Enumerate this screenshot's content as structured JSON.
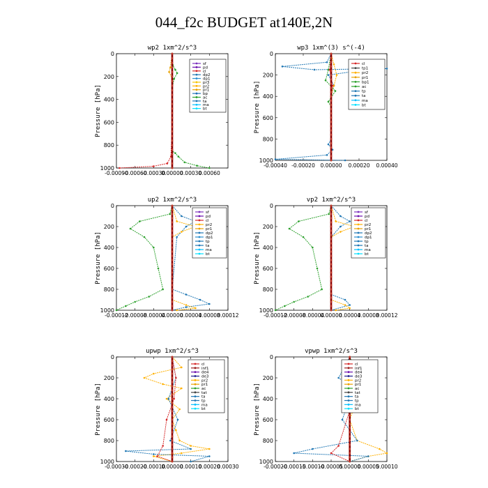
{
  "title": "044_f2c  BUDGET at140E,2N",
  "colors": {
    "sf": "#7b2fbe",
    "pd": "#6a0dad",
    "cl": "#d62728",
    "inf1": "#9b1c1c",
    "dp2": "#1f77b4",
    "dp1": "#2a8fd0",
    "pr3": "#f5c400",
    "pr2": "#ffb000",
    "pr1": "#e8a000",
    "bp": "#1f6fb4",
    "bp1": "#2ca02c",
    "ac": "#2ca02c",
    "tp": "#1f77b4",
    "ta": "#1f77b4",
    "ma": "#00bfff",
    "bt": "#00e0ff",
    "de4": "#6a0dad",
    "de3": "#1a1a8c",
    "ma_bar": "#8b0000"
  },
  "chart_data": [
    {
      "type": "line",
      "title": "wp2   1xm^2/s^3",
      "ylabel": "Pressure [hPa]",
      "ylim": [
        1000,
        0
      ],
      "yticks": [
        "0",
        "200",
        "400",
        "600",
        "800",
        "1000"
      ],
      "xlim": [
        -0.0009,
        0.0009
      ],
      "xticks": [
        "-0.00090",
        "-0.00060",
        "-0.00030",
        "0.00000",
        "0.00030",
        "0.00060"
      ],
      "legend": [
        "sf",
        "pd",
        "cl",
        "dp2",
        "dp1",
        "pr3",
        "pr2",
        "pr1",
        "bp",
        "ac",
        "ta",
        "ma",
        "bt"
      ],
      "series": [
        {
          "key": "bp1",
          "points": [
            [
              0,
              0
            ],
            [
              1e-05,
              100
            ],
            [
              5e-05,
              140
            ],
            [
              8e-05,
              170
            ],
            [
              3e-05,
              220
            ],
            [
              0,
              300
            ],
            [
              0,
              600
            ],
            [
              0,
              850
            ],
            [
              5e-05,
              870
            ],
            [
              0.0001,
              900
            ],
            [
              0.0002,
              950
            ],
            [
              0.0004,
              980
            ],
            [
              0.0006,
              1000
            ]
          ]
        },
        {
          "key": "cl",
          "points": [
            [
              0,
              0
            ],
            [
              0,
              600
            ],
            [
              -2e-05,
              900
            ],
            [
              -8e-05,
              960
            ],
            [
              -0.0003,
              985
            ],
            [
              -0.00085,
              1000
            ]
          ]
        },
        {
          "key": "pr1",
          "points": [
            [
              0,
              0
            ],
            [
              -3e-05,
              120
            ],
            [
              -5e-05,
              160
            ],
            [
              0,
              220
            ],
            [
              0,
              1000
            ]
          ]
        },
        {
          "key": "ma_bar",
          "points": [
            [
              0,
              0
            ],
            [
              0,
              1000
            ]
          ]
        }
      ]
    },
    {
      "type": "line",
      "title": "wp3   1xm^(3) s^(-4)",
      "ylabel": "Pressure [hPa]",
      "ylim": [
        1000,
        0
      ],
      "yticks": [
        "0",
        "200",
        "400",
        "600",
        "800",
        "1000"
      ],
      "xlim": [
        -0.0004,
        0.0004
      ],
      "xticks": [
        "-0.00040",
        "-0.00020",
        "0.00000",
        "0.00020",
        "0.00040"
      ],
      "legend": [
        "cl",
        "tp1",
        "pr2",
        "pr1",
        "bp1",
        "ac",
        "tp",
        "ta",
        "ma",
        "bt"
      ],
      "series": [
        {
          "key": "tp",
          "points": [
            [
              0,
              0
            ],
            [
              -3e-05,
              80
            ],
            [
              -0.00035,
              120
            ],
            [
              -0.00012,
              150
            ],
            [
              0.0004,
              140
            ],
            [
              0.0002,
              160
            ],
            [
              -2e-05,
              200
            ],
            [
              2e-05,
              300
            ],
            [
              0,
              400
            ],
            [
              0,
              800
            ],
            [
              -2e-05,
              850
            ],
            [
              1e-05,
              900
            ],
            [
              -3e-05,
              950
            ],
            [
              -0.0004,
              990
            ],
            [
              0.0001,
              1000
            ]
          ]
        },
        {
          "key": "pr2",
          "points": [
            [
              0,
              0
            ],
            [
              2e-05,
              100
            ],
            [
              4e-05,
              200
            ],
            [
              2e-05,
              300
            ],
            [
              0,
              400
            ],
            [
              0,
              1000
            ]
          ]
        },
        {
          "key": "bp1",
          "points": [
            [
              0,
              0
            ],
            [
              -2e-05,
              150
            ],
            [
              -4e-05,
              250
            ],
            [
              3e-05,
              350
            ],
            [
              -2e-05,
              450
            ],
            [
              0,
              500
            ],
            [
              0,
              1000
            ]
          ]
        },
        {
          "key": "cl",
          "points": [
            [
              0,
              0
            ],
            [
              -1e-05,
              150
            ],
            [
              1e-05,
              300
            ],
            [
              0,
              400
            ],
            [
              0,
              1000
            ]
          ]
        },
        {
          "key": "ma_bar",
          "points": [
            [
              0,
              0
            ],
            [
              0,
              1000
            ]
          ]
        }
      ]
    },
    {
      "type": "line",
      "title": "up2   1xm^2/s^3",
      "ylabel": "Pressure [hPa]",
      "ylim": [
        1000,
        0
      ],
      "yticks": [
        "0",
        "200",
        "400",
        "600",
        "800",
        "1000"
      ],
      "xlim": [
        -0.00012,
        0.00012
      ],
      "xticks": [
        "-0.00012",
        "-0.00008",
        "-0.00004",
        "0.00000",
        "0.00004",
        "0.00008",
        "0.00012"
      ],
      "legend": [
        "sf",
        "pd",
        "cl",
        "pr2",
        "pr1",
        "dp2",
        "dp1",
        "tp",
        "ta",
        "ma",
        "bt"
      ],
      "series": [
        {
          "key": "bp1",
          "points": [
            [
              0,
              0
            ],
            [
              -5e-06,
              80
            ],
            [
              -7e-05,
              150
            ],
            [
              -9e-05,
              220
            ],
            [
              -6e-05,
              300
            ],
            [
              -4e-05,
              400
            ],
            [
              -3e-05,
              600
            ],
            [
              -2e-05,
              800
            ],
            [
              -5e-05,
              870
            ],
            [
              -8e-05,
              920
            ],
            [
              -0.0001,
              960
            ],
            [
              -0.00012,
              1000
            ]
          ]
        },
        {
          "key": "tp",
          "points": [
            [
              0,
              0
            ],
            [
              2e-05,
              100
            ],
            [
              5e-05,
              150
            ],
            [
              3e-05,
              200
            ],
            [
              1e-05,
              300
            ],
            [
              0,
              800
            ],
            [
              3e-05,
              850
            ],
            [
              6e-05,
              900
            ],
            [
              8e-05,
              940
            ],
            [
              3e-05,
              970
            ],
            [
              0,
              1000
            ]
          ]
        },
        {
          "key": "pr2",
          "points": [
            [
              0,
              0
            ],
            [
              1e-05,
              150
            ],
            [
              5e-05,
              200
            ],
            [
              2e-05,
              250
            ],
            [
              0,
              300
            ],
            [
              0,
              900
            ],
            [
              3e-05,
              950
            ],
            [
              5e-05,
              980
            ],
            [
              1e-05,
              1000
            ]
          ]
        },
        {
          "key": "ma_bar",
          "points": [
            [
              0,
              0
            ],
            [
              0,
              1000
            ]
          ]
        }
      ]
    },
    {
      "type": "line",
      "title": "vp2   1xm^2/s^3",
      "ylabel": "Pressure [hPa]",
      "ylim": [
        1000,
        0
      ],
      "yticks": [
        "0",
        "200",
        "400",
        "600",
        "800",
        "1000"
      ],
      "xlim": [
        -0.00012,
        0.00012
      ],
      "xticks": [
        "-0.00012",
        "-0.00008",
        "-0.00004",
        "0.00000",
        "0.00004",
        "0.00008",
        "0.00012"
      ],
      "legend": [
        "sf",
        "pd",
        "cl",
        "pr2",
        "pr1",
        "dp2",
        "dp1",
        "tp",
        "ta",
        "ma",
        "bt"
      ],
      "series": [
        {
          "key": "bp1",
          "points": [
            [
              0,
              0
            ],
            [
              -5e-06,
              80
            ],
            [
              -7e-05,
              150
            ],
            [
              -9e-05,
              220
            ],
            [
              -6e-05,
              300
            ],
            [
              -4e-05,
              400
            ],
            [
              -3e-05,
              600
            ],
            [
              -2e-05,
              800
            ],
            [
              -5e-05,
              870
            ],
            [
              -8e-05,
              920
            ],
            [
              -0.0001,
              960
            ],
            [
              -0.00012,
              1000
            ]
          ]
        },
        {
          "key": "tp",
          "points": [
            [
              0,
              0
            ],
            [
              2e-05,
              100
            ],
            [
              4e-05,
              150
            ],
            [
              2e-05,
              200
            ],
            [
              0,
              300
            ],
            [
              0,
              850
            ],
            [
              3e-05,
              900
            ],
            [
              4e-05,
              950
            ],
            [
              0,
              1000
            ]
          ]
        },
        {
          "key": "pr2",
          "points": [
            [
              0,
              0
            ],
            [
              1e-05,
              150
            ],
            [
              5e-05,
              200
            ],
            [
              2e-05,
              250
            ],
            [
              0,
              300
            ],
            [
              0,
              900
            ],
            [
              3e-05,
              950
            ],
            [
              4e-05,
              980
            ],
            [
              1e-05,
              1000
            ]
          ]
        },
        {
          "key": "ma_bar",
          "points": [
            [
              0,
              0
            ],
            [
              0,
              1000
            ]
          ]
        }
      ]
    },
    {
      "type": "line",
      "title": "upwp   1xm^2/s^3",
      "ylabel": "Pressure [hPa]",
      "ylim": [
        1000,
        0
      ],
      "yticks": [
        "0",
        "200",
        "400",
        "600",
        "800",
        "1000"
      ],
      "xlim": [
        -0.0003,
        0.0003
      ],
      "xticks": [
        "-0.00030",
        "-0.00020",
        "-0.00010",
        "0.00000",
        "0.00010",
        "0.00020",
        "0.00030"
      ],
      "legend": [
        "cl",
        "inf1",
        "de4",
        "de3",
        "pr2",
        "pr1",
        "ac",
        "tat",
        "ta",
        "tp",
        "ma",
        "bt"
      ],
      "series": [
        {
          "key": "pr2",
          "points": [
            [
              0,
              0
            ],
            [
              5e-05,
              100
            ],
            [
              -0.0001,
              160
            ],
            [
              -0.00015,
              200
            ],
            [
              -5e-05,
              260
            ],
            [
              5e-05,
              300
            ],
            [
              -3e-05,
              400
            ],
            [
              4e-05,
              500
            ],
            [
              0,
              600
            ],
            [
              2e-05,
              700
            ],
            [
              4e-05,
              800
            ],
            [
              0.0001,
              850
            ],
            [
              0.0002,
              880
            ],
            [
              5e-05,
              920
            ],
            [
              -0.0001,
              950
            ],
            [
              0,
              1000
            ]
          ]
        },
        {
          "key": "tp",
          "points": [
            [
              0,
              0
            ],
            [
              2e-05,
              200
            ],
            [
              -2e-05,
              400
            ],
            [
              3e-05,
              600
            ],
            [
              -1e-05,
              800
            ],
            [
              0.0001,
              880
            ],
            [
              -0.00025,
              900
            ],
            [
              -0.0001,
              930
            ],
            [
              0.0002,
              950
            ],
            [
              0.0001,
              1000
            ]
          ]
        },
        {
          "key": "cl",
          "points": [
            [
              0,
              0
            ],
            [
              2e-05,
              200
            ],
            [
              1e-05,
              400
            ],
            [
              -3e-05,
              600
            ],
            [
              -5e-05,
              850
            ],
            [
              -8e-05,
              950
            ],
            [
              0,
              1000
            ]
          ]
        },
        {
          "key": "ma_bar",
          "points": [
            [
              0,
              0
            ],
            [
              0,
              1000
            ]
          ]
        }
      ]
    },
    {
      "type": "line",
      "title": "vpwp   1xm^2/s^3",
      "ylabel": "Pressure [hPa]",
      "ylim": [
        1000,
        0
      ],
      "yticks": [
        "0",
        "200",
        "400",
        "600",
        "800",
        "1000"
      ],
      "xlim": [
        -0.0002,
        0.0001
      ],
      "xticks": [
        "-0.00020",
        "-0.00015",
        "-0.00010",
        "-0.00005",
        "0.00000",
        "0.00005",
        "0.00010"
      ],
      "legend": [
        "cl",
        "inf1",
        "de4",
        "de3",
        "pr2",
        "pr1",
        "ac",
        "tat",
        "ta",
        "tp",
        "ma",
        "bt"
      ],
      "series": [
        {
          "key": "ac",
          "points": [
            [
              0,
              0
            ],
            [
              2e-05,
              150
            ],
            [
              4e-05,
              220
            ],
            [
              3e-05,
              260
            ],
            [
              0,
              300
            ],
            [
              0,
              1000
            ]
          ]
        },
        {
          "key": "pr2",
          "points": [
            [
              0,
              0
            ],
            [
              -2e-05,
              200
            ],
            [
              2e-05,
              400
            ],
            [
              0,
              600
            ],
            [
              2e-05,
              800
            ],
            [
              8e-05,
              880
            ],
            [
              0.0001,
              920
            ],
            [
              5e-05,
              950
            ],
            [
              0,
              1000
            ]
          ]
        },
        {
          "key": "tp",
          "points": [
            [
              0,
              0
            ],
            [
              -3e-05,
              200
            ],
            [
              1e-05,
              300
            ],
            [
              -2e-05,
              600
            ],
            [
              2e-05,
              800
            ],
            [
              -0.0001,
              880
            ],
            [
              -0.00015,
              920
            ],
            [
              5e-05,
              950
            ],
            [
              0,
              1000
            ]
          ]
        },
        {
          "key": "cl",
          "points": [
            [
              0,
              0
            ],
            [
              1e-05,
              400
            ],
            [
              -3e-05,
              850
            ],
            [
              -5e-05,
              920
            ],
            [
              0,
              1000
            ]
          ]
        },
        {
          "key": "ma_bar",
          "points": [
            [
              0,
              0
            ],
            [
              0,
              1000
            ]
          ]
        }
      ]
    }
  ]
}
